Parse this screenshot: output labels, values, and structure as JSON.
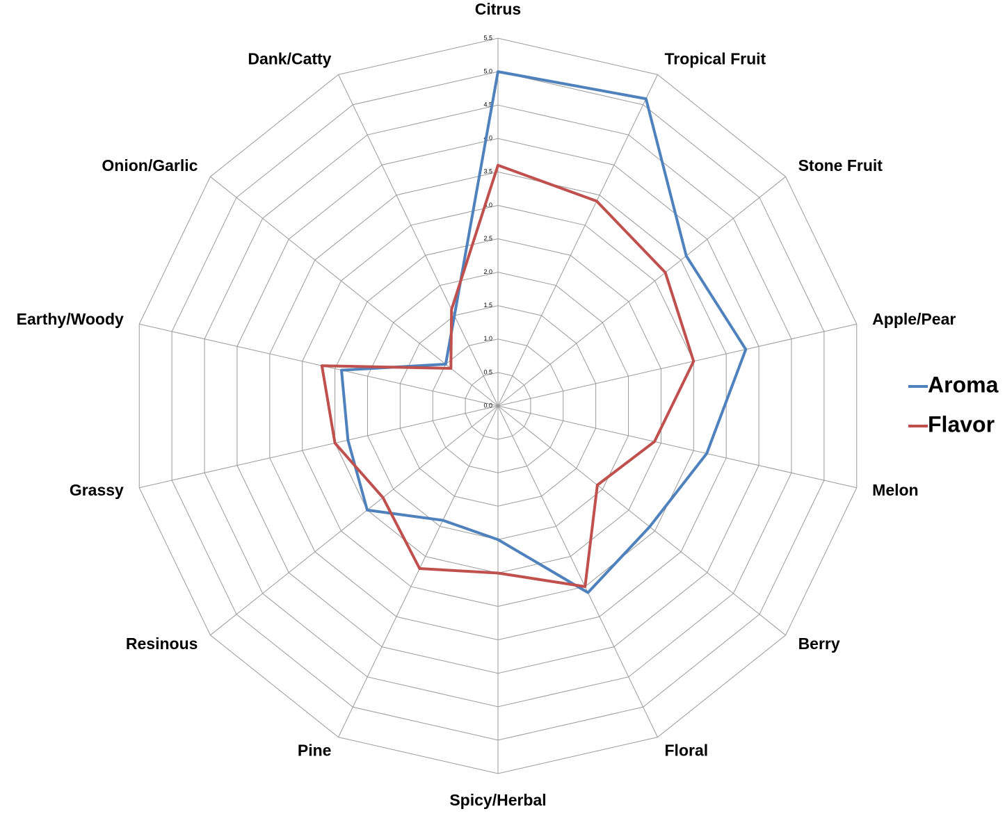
{
  "chart_data": {
    "type": "radar",
    "categories": [
      "Citrus",
      "Tropical Fruit",
      "Stone Fruit",
      "Apple/Pear",
      "Melon",
      "Berry",
      "Floral",
      "Spicy/Herbal",
      "Pine",
      "Resinous",
      "Grassy",
      "Earthy/Woody",
      "Onion/Garlic",
      "Dank/Catty"
    ],
    "series": [
      {
        "name": "Aroma",
        "color": "#4f81bd",
        "values": [
          5.0,
          5.1,
          3.6,
          3.8,
          3.2,
          2.9,
          3.1,
          2.0,
          1.9,
          2.5,
          2.3,
          2.4,
          1.0,
          1.5
        ]
      },
      {
        "name": "Flavor",
        "color": "#c0504d",
        "values": [
          3.6,
          3.4,
          3.2,
          3.0,
          2.4,
          1.9,
          3.0,
          2.5,
          2.7,
          2.2,
          2.5,
          2.7,
          0.9,
          1.6
        ]
      }
    ],
    "ylim": [
      0,
      5.5
    ],
    "yticks": [
      {
        "value": 0,
        "label": "0.0"
      },
      {
        "value": 0.5,
        "label": "0.5"
      },
      {
        "value": 1,
        "label": "1.0"
      },
      {
        "value": 1.5,
        "label": "1.5"
      },
      {
        "value": 2,
        "label": "2.0"
      },
      {
        "value": 2.5,
        "label": "2.5"
      },
      {
        "value": 3,
        "label": "3.0"
      },
      {
        "value": 3.5,
        "label": "3.5"
      },
      {
        "value": 4,
        "label": "4.0"
      },
      {
        "value": 4.5,
        "label": "4.5"
      },
      {
        "value": 5,
        "label": "5.0"
      },
      {
        "value": 5.5,
        "label": "5.5"
      }
    ],
    "grid": true,
    "legend": "right"
  }
}
